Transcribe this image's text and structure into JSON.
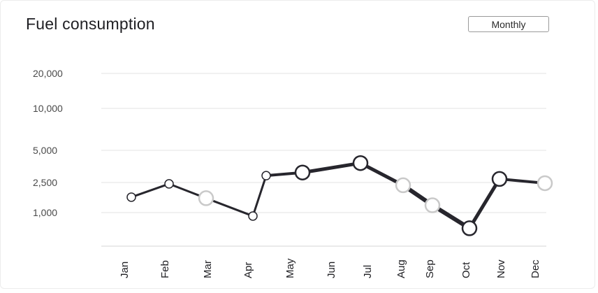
{
  "header": {
    "title": "Fuel consumption",
    "period_button": "Monthly"
  },
  "colors": {
    "line": "#27262d",
    "marker_fill": "#ffffff",
    "marker_stroke_dark": "#27262d",
    "marker_stroke_light": "#c9c9c9",
    "grid": "#e3e3e3"
  },
  "chart_data": {
    "type": "line",
    "title": "Fuel consumption",
    "xlabel": "",
    "ylabel": "",
    "scale": "log",
    "yticks": [
      1000,
      2500,
      5000,
      10000,
      20000
    ],
    "ytick_labels": [
      "1,000",
      "2,500",
      "5,000",
      "10,000",
      "20,000"
    ],
    "grid": true,
    "legend": "none",
    "categories": [
      "Jan",
      "Feb",
      "Mar",
      "Apr",
      "May",
      "Jun",
      "Jul",
      "Aug",
      "Sep",
      "Oct",
      "Nov",
      "Dec"
    ],
    "series": [
      {
        "points": [
          {
            "x": "Jan",
            "y": 1600
          },
          {
            "x": "Feb",
            "y": 2400
          },
          {
            "x": "Mar",
            "y": 1550
          },
          {
            "x": "Apr",
            "y": 900
          },
          {
            "x": "Apr",
            "y": 2900
          },
          {
            "x": "May",
            "y": 3100
          },
          {
            "x": "Jul",
            "y": 3800
          },
          {
            "x": "Aug",
            "y": 2300
          },
          {
            "x": "Sep",
            "y": 1250
          },
          {
            "x": "Oct",
            "y": 620
          },
          {
            "x": "Nov",
            "y": 2700
          },
          {
            "x": "Dec",
            "y": 2450
          }
        ]
      }
    ]
  }
}
